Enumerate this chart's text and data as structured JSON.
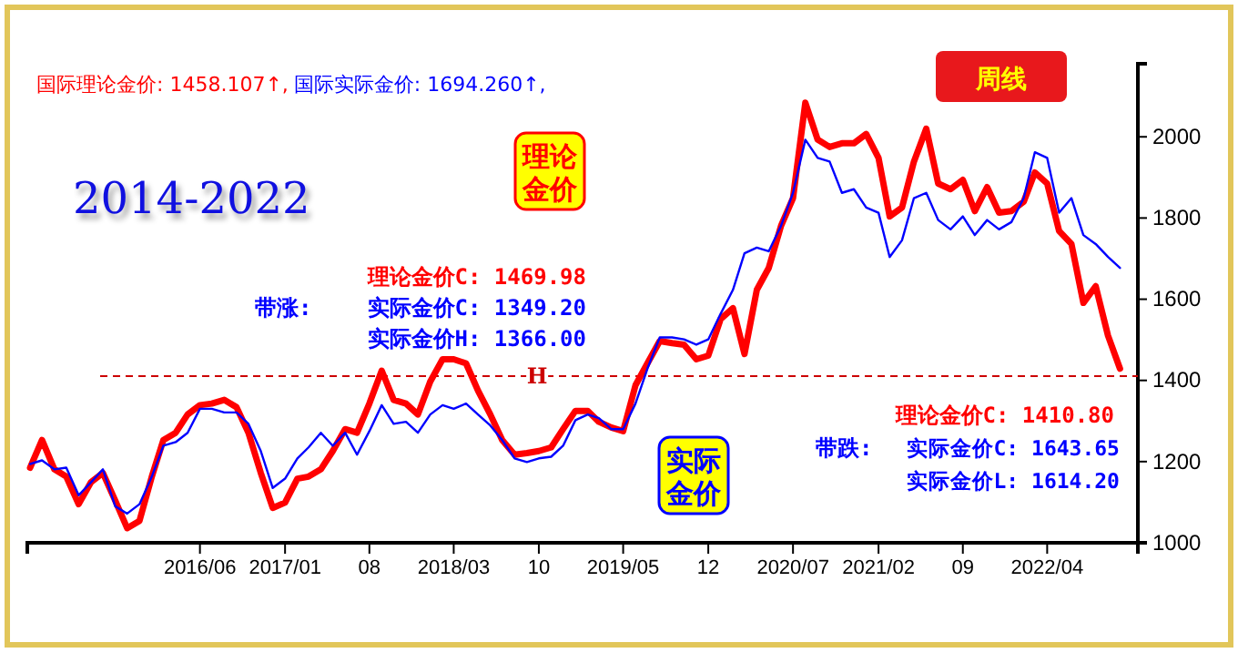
{
  "chart_data": {
    "type": "line",
    "title": "2014-2022",
    "annotations": [
      "国际理论金价: 1458.107↑,",
      "国际实际金价: 1694.260↑,",
      "周线",
      "理论金价C: 1469.98",
      "带涨:",
      "实际金价C: 1349.20",
      "实际金价H: 1366.00",
      "理论金价C: 1410.80",
      "带跌:",
      "实际金价C: 1643.65",
      "实际金价L: 1614.20"
    ],
    "x": [
      "2015-04",
      "2015-05",
      "2015-06",
      "2015-07",
      "2015-08",
      "2015-09",
      "2015-10",
      "2015-11",
      "2015-12",
      "2016-01",
      "2016-02",
      "2016-03",
      "2016-04",
      "2016-05",
      "2016-06",
      "2016-07",
      "2016-08",
      "2016-09",
      "2016-10",
      "2016-11",
      "2016-12",
      "2017-01",
      "2017-02",
      "2017-03",
      "2017-04",
      "2017-05",
      "2017-06",
      "2017-07",
      "2017-08",
      "2017-09",
      "2017-10",
      "2017-11",
      "2017-12",
      "2018-01",
      "2018-02",
      "2018-03",
      "2018-04",
      "2018-05",
      "2018-06",
      "2018-07",
      "2018-08",
      "2018-09",
      "2018-10",
      "2018-11",
      "2018-12",
      "2019-01",
      "2019-02",
      "2019-03",
      "2019-04",
      "2019-05",
      "2019-06",
      "2019-07",
      "2019-08",
      "2019-09",
      "2019-10",
      "2019-11",
      "2019-12",
      "2020-01",
      "2020-02",
      "2020-03",
      "2020-04",
      "2020-05",
      "2020-06",
      "2020-07",
      "2020-08",
      "2020-09",
      "2020-10",
      "2020-11",
      "2020-12",
      "2021-01",
      "2021-02",
      "2021-03",
      "2021-04",
      "2021-05",
      "2021-06",
      "2021-07",
      "2021-08",
      "2021-09",
      "2021-10",
      "2021-11",
      "2021-12",
      "2022-01",
      "2022-02",
      "2022-03",
      "2022-04",
      "2022-05",
      "2022-06",
      "2022-07",
      "2022-08",
      "2022-09",
      "2022-10"
    ],
    "series": [
      {
        "name": "理论金价",
        "color": "#ff0000",
        "values": [
          1185,
          1253,
          1181,
          1163,
          1095,
          1149,
          1172,
          1104,
          1036,
          1054,
          1163,
          1253,
          1271,
          1316,
          1339,
          1343,
          1352,
          1334,
          1271,
          1172,
          1086,
          1099,
          1158,
          1163,
          1181,
          1226,
          1280,
          1271,
          1343,
          1424,
          1352,
          1343,
          1316,
          1397,
          1452,
          1452,
          1442,
          1375,
          1316,
          1253,
          1217,
          1221,
          1226,
          1235,
          1280,
          1325,
          1325,
          1298,
          1284,
          1275,
          1388,
          1442,
          1497,
          1492,
          1488,
          1452,
          1461,
          1551,
          1578,
          1465,
          1623,
          1677,
          1781,
          1849,
          2084,
          1993,
          1975,
          1984,
          1984,
          2007,
          1948,
          1804,
          1826,
          1939,
          2020,
          1885,
          1871,
          1894,
          1817,
          1876,
          1813,
          1817,
          1840,
          1912,
          1885,
          1768,
          1736,
          1591,
          1632,
          1510,
          1429
        ]
      },
      {
        "name": "实际金价",
        "color": "#0000ff",
        "values": [
          1194,
          1203,
          1181,
          1185,
          1117,
          1149,
          1181,
          1090,
          1072,
          1095,
          1163,
          1239,
          1248,
          1271,
          1330,
          1330,
          1321,
          1321,
          1293,
          1226,
          1135,
          1158,
          1208,
          1235,
          1271,
          1239,
          1271,
          1217,
          1275,
          1339,
          1293,
          1298,
          1271,
          1316,
          1339,
          1330,
          1343,
          1316,
          1289,
          1253,
          1208,
          1199,
          1208,
          1212,
          1239,
          1302,
          1316,
          1307,
          1280,
          1280,
          1343,
          1429,
          1506,
          1506,
          1501,
          1488,
          1501,
          1564,
          1623,
          1713,
          1727,
          1718,
          1781,
          1862,
          1993,
          1948,
          1939,
          1862,
          1871,
          1826,
          1813,
          1704,
          1745,
          1849,
          1862,
          1795,
          1772,
          1804,
          1758,
          1795,
          1772,
          1790,
          1849,
          1962,
          1948,
          1813,
          1849,
          1758,
          1736,
          1704,
          1677
        ]
      }
    ],
    "xlim": [
      "2015-03-25",
      "2022-11-15"
    ],
    "xticks": [
      {
        "value": "2016-06",
        "label": "2016/06"
      },
      {
        "value": "2017-01",
        "label": "2017/01"
      },
      {
        "value": "2017-08",
        "label": "08"
      },
      {
        "value": "2018-03",
        "label": "2018/03"
      },
      {
        "value": "2018-10",
        "label": "10"
      },
      {
        "value": "2019-05",
        "label": "2019/05"
      },
      {
        "value": "2019-12",
        "label": "12"
      },
      {
        "value": "2020-07",
        "label": "2020/07"
      },
      {
        "value": "2021-02",
        "label": "2021/02"
      },
      {
        "value": "2021-09",
        "label": "09"
      },
      {
        "value": "2022-04",
        "label": "2022/04"
      }
    ],
    "ylim": [
      1000,
      2180
    ],
    "yticks": [
      1000,
      1200,
      1400,
      1600,
      1800,
      2000
    ],
    "ref_lines": [
      {
        "axis": "y",
        "value": 1410.8,
        "label": "H",
        "color": "#cc0000",
        "line_style": "dashed"
      }
    ],
    "grid": false
  }
}
